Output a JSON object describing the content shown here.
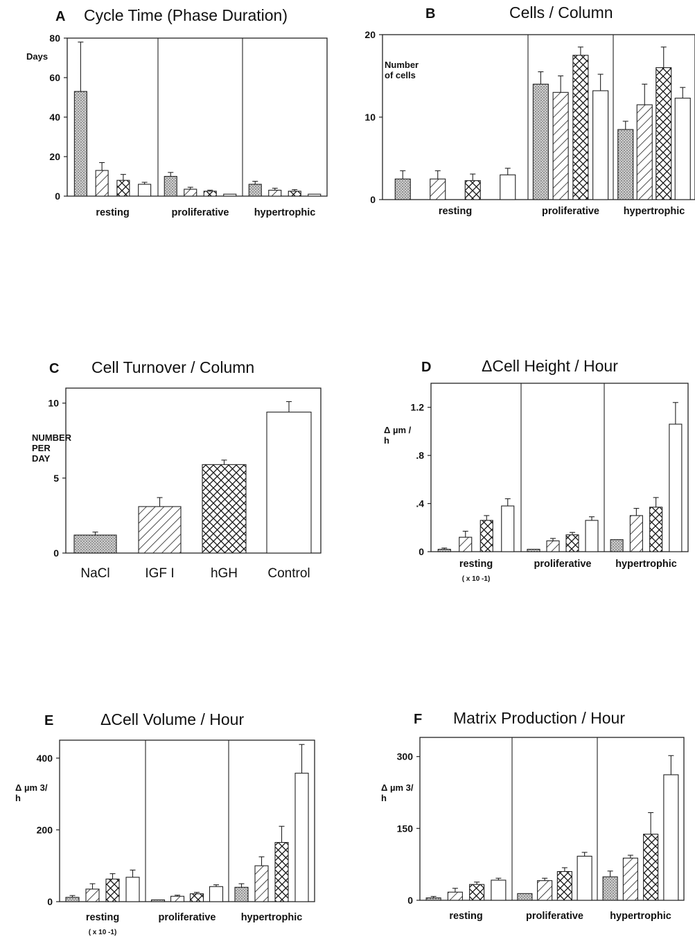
{
  "chart_data": [
    {
      "panel": "A",
      "type": "bar",
      "title": "Cycle Time (Phase Duration)",
      "ylabel": "Days",
      "ylim": [
        0,
        80
      ],
      "yticks": [
        0,
        20,
        40,
        60,
        80
      ],
      "groups": [
        "resting",
        "proliferative",
        "hypertrophic"
      ],
      "series": [
        {
          "pattern": "stipple",
          "values": [
            53,
            10,
            6
          ],
          "errors": [
            25,
            2,
            1.5
          ]
        },
        {
          "pattern": "hatch",
          "values": [
            13,
            3.5,
            3
          ],
          "errors": [
            4,
            1,
            1
          ]
        },
        {
          "pattern": "crosshatch",
          "values": [
            8,
            2.5,
            2.5
          ],
          "errors": [
            3,
            0.5,
            0.8
          ]
        },
        {
          "pattern": "open",
          "values": [
            6,
            1,
            1
          ],
          "errors": [
            1,
            0,
            0
          ]
        }
      ]
    },
    {
      "panel": "B",
      "type": "bar",
      "title": "Cells / Column",
      "ylabel": [
        "Number",
        "of cells"
      ],
      "ylim": [
        0,
        20
      ],
      "yticks": [
        0,
        10,
        20
      ],
      "groups": [
        "resting",
        "proliferative",
        "hypertrophic"
      ],
      "series": [
        {
          "pattern": "stipple",
          "values": [
            2.5,
            14,
            8.5
          ],
          "errors": [
            1,
            1.5,
            1
          ]
        },
        {
          "pattern": "hatch",
          "values": [
            2.5,
            13,
            11.5
          ],
          "errors": [
            1,
            2,
            2.5
          ]
        },
        {
          "pattern": "crosshatch",
          "values": [
            2.3,
            17.5,
            16
          ],
          "errors": [
            0.8,
            1,
            2.5
          ]
        },
        {
          "pattern": "open",
          "values": [
            3,
            13.2,
            12.3
          ],
          "errors": [
            0.8,
            2,
            1.3
          ]
        }
      ]
    },
    {
      "panel": "C",
      "type": "bar",
      "title": "Cell Turnover / Column",
      "ylabel": [
        "NUMBER",
        "PER",
        "DAY"
      ],
      "ylim": [
        0,
        11
      ],
      "yticks": [
        0,
        5,
        10
      ],
      "categories": [
        "NaCl",
        "IGF I",
        "hGH",
        "Control"
      ],
      "patterns": [
        "stipple",
        "hatch",
        "crosshatch",
        "open"
      ],
      "values": [
        1.2,
        3.1,
        5.9,
        9.4
      ],
      "errors": [
        0.2,
        0.6,
        0.3,
        0.7
      ]
    },
    {
      "panel": "D",
      "type": "bar",
      "title": "ΔCell Height / Hour",
      "ylabel": [
        "Δ µm /",
        "h"
      ],
      "ylim": [
        0,
        1.4
      ],
      "yticks": [
        0,
        0.4,
        0.8,
        1.2
      ],
      "ytick_labels": [
        "0",
        ".4",
        ".8",
        "1.2"
      ],
      "groups": [
        "resting",
        "proliferative",
        "hypertrophic"
      ],
      "group_notes": [
        "( x 10 -1)",
        "",
        ""
      ],
      "series": [
        {
          "pattern": "stipple",
          "values": [
            0.02,
            0.02,
            0.1
          ],
          "errors": [
            0.01,
            0,
            0
          ]
        },
        {
          "pattern": "hatch",
          "values": [
            0.12,
            0.09,
            0.3
          ],
          "errors": [
            0.05,
            0.02,
            0.06
          ]
        },
        {
          "pattern": "crosshatch",
          "values": [
            0.26,
            0.14,
            0.37
          ],
          "errors": [
            0.04,
            0.02,
            0.08
          ]
        },
        {
          "pattern": "open",
          "values": [
            0.38,
            0.26,
            1.06
          ],
          "errors": [
            0.06,
            0.03,
            0.18
          ]
        }
      ]
    },
    {
      "panel": "E",
      "type": "bar",
      "title": "ΔCell Volume / Hour",
      "ylabel": [
        "Δ µm 3/",
        "h"
      ],
      "ylim": [
        0,
        450
      ],
      "yticks": [
        0,
        200,
        400
      ],
      "groups": [
        "resting",
        "proliferative",
        "hypertrophic"
      ],
      "group_notes": [
        "( x 10 -1)",
        "",
        ""
      ],
      "series": [
        {
          "pattern": "stipple",
          "values": [
            12,
            5,
            40
          ],
          "errors": [
            5,
            0,
            10
          ]
        },
        {
          "pattern": "hatch",
          "values": [
            35,
            15,
            100
          ],
          "errors": [
            15,
            3,
            25
          ]
        },
        {
          "pattern": "crosshatch",
          "values": [
            63,
            22,
            165
          ],
          "errors": [
            15,
            4,
            45
          ]
        },
        {
          "pattern": "open",
          "values": [
            68,
            42,
            358
          ],
          "errors": [
            20,
            5,
            80
          ]
        }
      ]
    },
    {
      "panel": "F",
      "type": "bar",
      "title": "Matrix Production / Hour",
      "ylabel": [
        "Δ µm 3/",
        "h"
      ],
      "ylim": [
        0,
        340
      ],
      "yticks": [
        0,
        150,
        300
      ],
      "groups": [
        "resting",
        "proliferative",
        "hypertrophic"
      ],
      "series": [
        {
          "pattern": "stipple",
          "values": [
            5,
            14,
            49
          ],
          "errors": [
            3,
            0,
            12
          ]
        },
        {
          "pattern": "hatch",
          "values": [
            17,
            41,
            88
          ],
          "errors": [
            8,
            5,
            6
          ]
        },
        {
          "pattern": "crosshatch",
          "values": [
            33,
            60,
            138
          ],
          "errors": [
            5,
            8,
            45
          ]
        },
        {
          "pattern": "open",
          "values": [
            42,
            92,
            262
          ],
          "errors": [
            4,
            8,
            40
          ]
        }
      ]
    }
  ]
}
